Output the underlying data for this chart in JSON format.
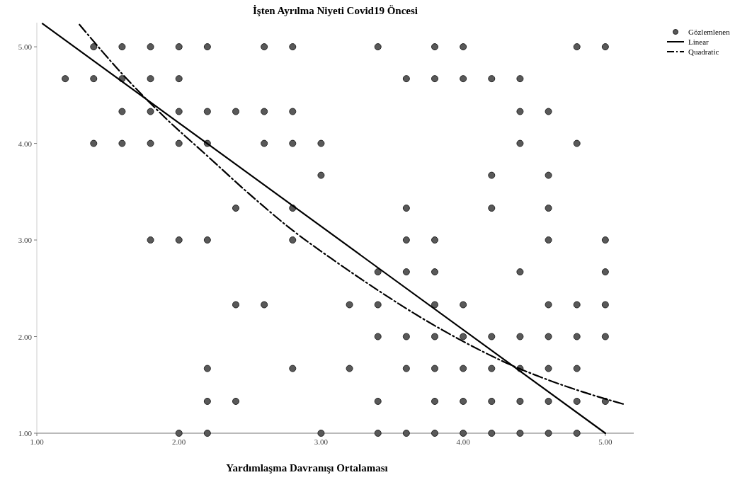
{
  "chart_data": {
    "type": "scatter",
    "title": "İşten Ayrılma Niyeti Covid19 Öncesi",
    "xlabel": "Yardımlaşma Davranışı Ortalaması",
    "xlim": [
      1,
      5.2
    ],
    "ylim": [
      1,
      5.25
    ],
    "xticks": [
      {
        "value": 1,
        "label": "1.00"
      },
      {
        "value": 2,
        "label": "2.00"
      },
      {
        "value": 3,
        "label": "3.00"
      },
      {
        "value": 4,
        "label": "4.00"
      },
      {
        "value": 5,
        "label": "5.00"
      }
    ],
    "yticks": [
      {
        "value": 1,
        "label": "1.00"
      },
      {
        "value": 2,
        "label": "2.00"
      },
      {
        "value": 3,
        "label": "3.00"
      },
      {
        "value": 4,
        "label": "4.00"
      },
      {
        "value": 5,
        "label": "5.00"
      }
    ],
    "grid": false,
    "legend": "top right",
    "series": [
      {
        "name": "Gözlemlenen",
        "marker": "circle",
        "color": "#595959",
        "x": [
          1.4,
          1.6,
          1.8,
          2.0,
          2.2,
          2.6,
          2.8,
          3.4,
          3.8,
          4.0,
          4.8,
          5.0,
          1.2,
          1.4,
          1.6,
          1.8,
          2.0,
          3.6,
          3.8,
          4.0,
          4.2,
          4.4,
          1.6,
          1.8,
          2.0,
          2.2,
          2.4,
          2.6,
          2.8,
          4.4,
          4.6,
          1.4,
          1.6,
          1.8,
          2.0,
          2.2,
          2.6,
          2.8,
          3.0,
          4.4,
          4.8,
          3.0,
          4.2,
          4.6,
          2.4,
          2.8,
          3.6,
          4.2,
          4.6,
          1.8,
          2.0,
          2.2,
          2.8,
          3.6,
          3.8,
          4.6,
          5.0,
          3.4,
          3.6,
          3.8,
          4.4,
          5.0,
          2.4,
          2.6,
          3.2,
          3.4,
          3.8,
          4.0,
          4.6,
          4.8,
          5.0,
          3.4,
          3.6,
          3.8,
          4.0,
          4.2,
          4.4,
          4.6,
          4.8,
          5.0,
          2.2,
          2.8,
          3.2,
          3.6,
          3.8,
          4.0,
          4.2,
          4.4,
          4.6,
          4.8,
          2.2,
          2.4,
          3.4,
          3.8,
          4.0,
          4.2,
          4.4,
          4.6,
          4.8,
          5.0,
          2.0,
          2.2,
          3.0,
          3.4,
          3.6,
          3.8,
          4.0,
          4.2,
          4.4,
          4.6,
          4.8
        ],
        "values": [
          5,
          5,
          5,
          5,
          5,
          5,
          5,
          5,
          5,
          5,
          5,
          5,
          4.67,
          4.67,
          4.67,
          4.67,
          4.67,
          4.67,
          4.67,
          4.67,
          4.67,
          4.67,
          4.33,
          4.33,
          4.33,
          4.33,
          4.33,
          4.33,
          4.33,
          4.33,
          4.33,
          4,
          4,
          4,
          4,
          4,
          4,
          4,
          4,
          4,
          4,
          3.67,
          3.67,
          3.67,
          3.33,
          3.33,
          3.33,
          3.33,
          3.33,
          3,
          3,
          3,
          3,
          3,
          3,
          3,
          3,
          2.67,
          2.67,
          2.67,
          2.67,
          2.67,
          2.33,
          2.33,
          2.33,
          2.33,
          2.33,
          2.33,
          2.33,
          2.33,
          2.33,
          2,
          2,
          2,
          2,
          2,
          2,
          2,
          2,
          2,
          1.67,
          1.67,
          1.67,
          1.67,
          1.67,
          1.67,
          1.67,
          1.67,
          1.67,
          1.67,
          1.33,
          1.33,
          1.33,
          1.33,
          1.33,
          1.33,
          1.33,
          1.33,
          1.33,
          1.33,
          1,
          1,
          1,
          1,
          1,
          1,
          1,
          1,
          1,
          1,
          1
        ]
      },
      {
        "name": "Linear",
        "type": "line",
        "line_style": "solid",
        "color": "#000000",
        "x": [
          1.04,
          5.0
        ],
        "values": [
          5.24,
          1.0
        ]
      },
      {
        "name": "Quadratic",
        "type": "line",
        "line_style": "dashed",
        "color": "#000000",
        "x": [
          1.3,
          1.6,
          1.9,
          2.2,
          2.5,
          2.8,
          3.1,
          3.4,
          3.7,
          4.0,
          4.3,
          4.6,
          4.9,
          5.13
        ],
        "values": [
          5.23,
          4.72,
          4.27,
          3.87,
          3.47,
          3.1,
          2.78,
          2.48,
          2.2,
          1.95,
          1.73,
          1.55,
          1.4,
          1.3
        ]
      }
    ]
  }
}
